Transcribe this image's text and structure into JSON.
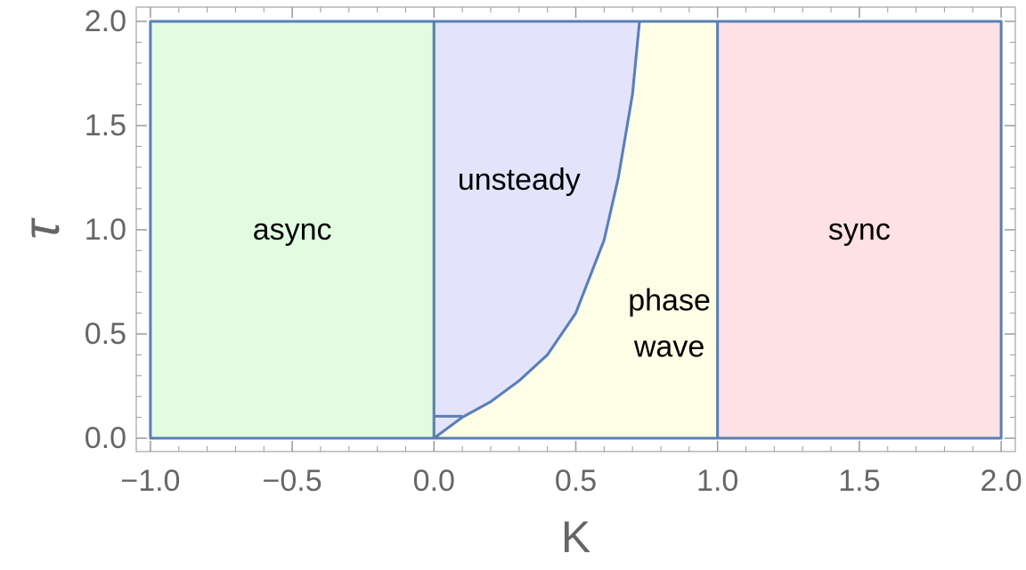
{
  "chart_data": {
    "type": "area",
    "title": "",
    "xlabel": "K",
    "ylabel": "τ",
    "xlim": [
      -1.05,
      2.05
    ],
    "ylim": [
      0.0,
      2.0
    ],
    "x_ticks": [
      -1.0,
      -0.5,
      0.0,
      0.5,
      1.0,
      1.5,
      2.0
    ],
    "x_tick_labels": [
      "−1.0",
      "−0.5",
      "0.0",
      "0.5",
      "1.0",
      "1.5",
      "2.0"
    ],
    "y_ticks": [
      0.0,
      0.5,
      1.0,
      1.5,
      2.0
    ],
    "y_tick_labels": [
      "0.0",
      "0.5",
      "1.0",
      "1.5",
      "2.0"
    ],
    "grid": false,
    "legend": "none",
    "boundary_color": "#5b7fb5",
    "regions": [
      {
        "name": "async",
        "label_lines": [
          "async"
        ],
        "color": "#e2fce2",
        "label_at": [
          -0.5,
          1.0
        ],
        "polygon": [
          [
            -1.0,
            0.0
          ],
          [
            0.0,
            0.0
          ],
          [
            0.0,
            2.0
          ],
          [
            -1.0,
            2.0
          ]
        ]
      },
      {
        "name": "unsteady",
        "label_lines": [
          "unsteady"
        ],
        "color": "#e3e4fb",
        "label_at": [
          0.3,
          1.24
        ],
        "polygon": [
          [
            0.0,
            0.0
          ],
          [
            0.05,
            0.05
          ],
          [
            0.1,
            0.1
          ],
          [
            0.2,
            0.175
          ],
          [
            0.3,
            0.275
          ],
          [
            0.4,
            0.4
          ],
          [
            0.5,
            0.6
          ],
          [
            0.6,
            0.95
          ],
          [
            0.65,
            1.25
          ],
          [
            0.7,
            1.65
          ],
          [
            0.725,
            2.0
          ],
          [
            0.0,
            2.0
          ]
        ]
      },
      {
        "name": "phase wave",
        "label_lines": [
          "phase",
          "wave"
        ],
        "color": "#fdfee5",
        "label_at": [
          0.83,
          0.55
        ],
        "polygon": [
          [
            0.0,
            0.0
          ],
          [
            1.0,
            0.0
          ],
          [
            1.0,
            2.0
          ],
          [
            0.725,
            2.0
          ],
          [
            0.7,
            1.65
          ],
          [
            0.65,
            1.25
          ],
          [
            0.6,
            0.95
          ],
          [
            0.5,
            0.6
          ],
          [
            0.4,
            0.4
          ],
          [
            0.3,
            0.275
          ],
          [
            0.2,
            0.175
          ],
          [
            0.1,
            0.1
          ],
          [
            0.05,
            0.05
          ]
        ]
      },
      {
        "name": "sync",
        "label_lines": [
          "sync"
        ],
        "color": "#fee1e4",
        "label_at": [
          1.5,
          1.0
        ],
        "polygon": [
          [
            1.0,
            0.0
          ],
          [
            2.0,
            0.0
          ],
          [
            2.0,
            2.0
          ],
          [
            1.0,
            2.0
          ]
        ]
      }
    ],
    "extra_boundaries": [
      [
        [
          0.0,
          0.105
        ],
        [
          0.1,
          0.105
        ]
      ]
    ]
  }
}
